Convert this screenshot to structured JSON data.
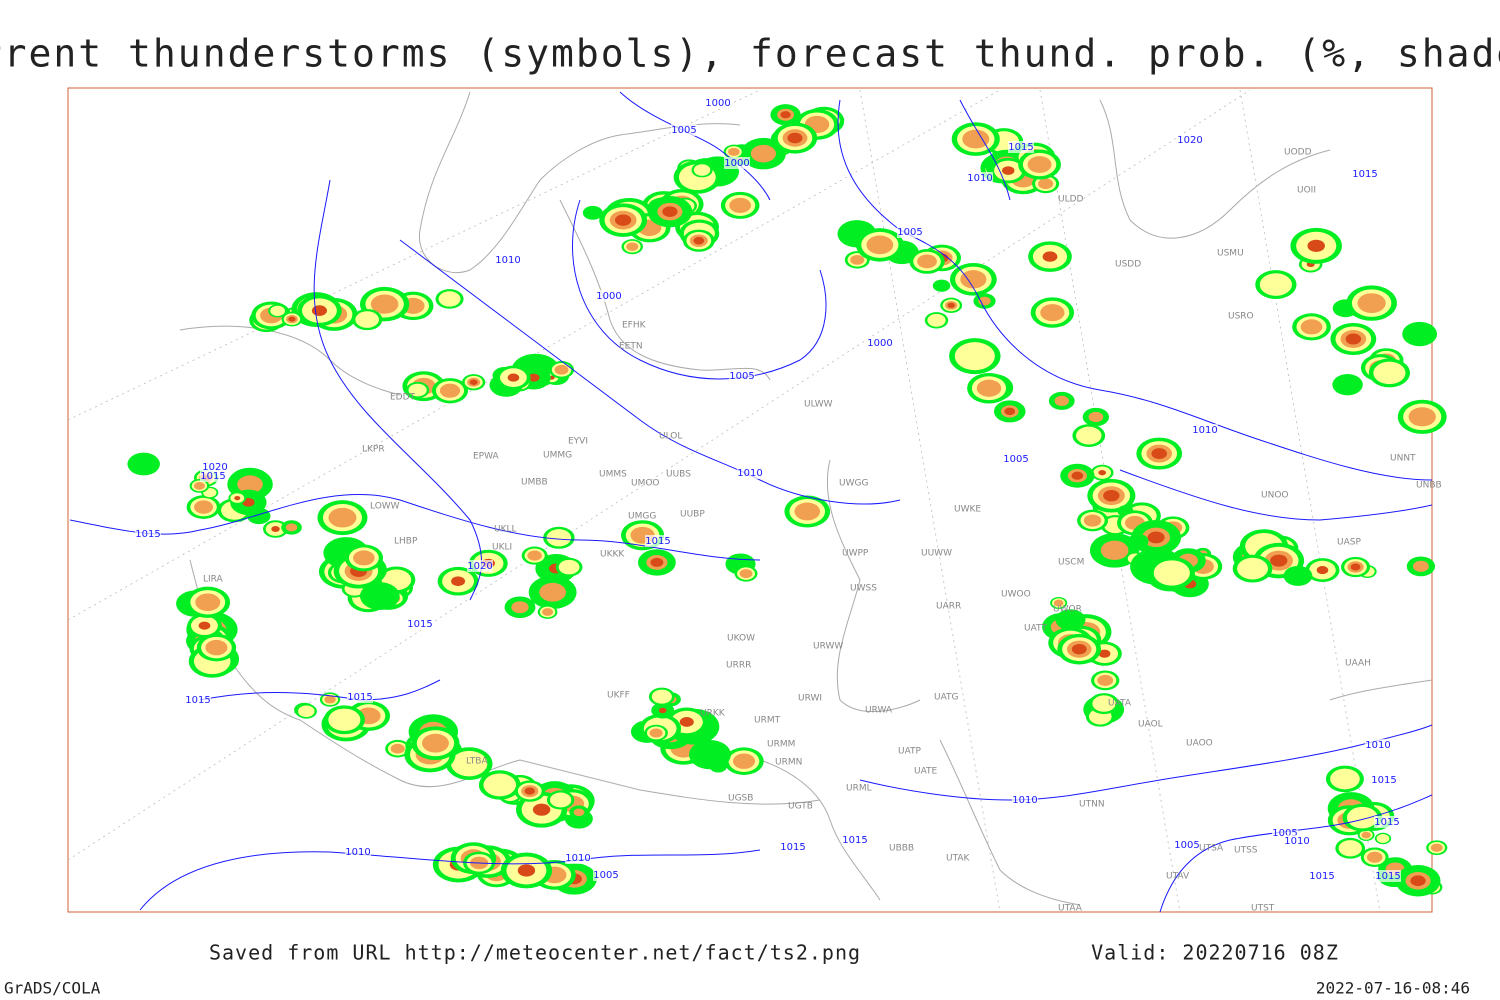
{
  "title": "Current thunderstorms (symbols), forecast thund. prob. (%, shaded)",
  "footer": {
    "saved": "Saved from URL http://meteocenter.net/fact/ts2.png",
    "valid": "Valid: 20220716 08Z"
  },
  "credits": {
    "left": "GrADS/COLA",
    "right": "2022-07-16-08:46"
  },
  "isobar_labels": [
    "1000",
    "1005",
    "1000",
    "1015",
    "1010",
    "1020",
    "1015",
    "1010",
    "1005",
    "1000",
    "1000",
    "1005",
    "1010",
    "1005",
    "1020",
    "1015",
    "1010",
    "1015",
    "1015",
    "1020",
    "1015",
    "1015",
    "1015",
    "1010",
    "1015",
    "1010",
    "1015",
    "1005",
    "1010",
    "1005",
    "1015",
    "1015",
    "1010",
    "1010",
    "1005",
    "1015",
    "1015"
  ],
  "station_labels": [
    "ULDD",
    "UODD",
    "UOII",
    "USMU",
    "USDD",
    "USRO",
    "EFHK",
    "EETN",
    "ULWW",
    "EDDT",
    "ULOL",
    "EYVI",
    "EPWA",
    "UMMG",
    "LKPR",
    "UMMS",
    "UUBS",
    "UMOO",
    "UMBB",
    "UWGG",
    "UNOO",
    "UNBB",
    "UWKE",
    "LOWW",
    "UKLL",
    "UMGG",
    "UUBP",
    "LHBP",
    "UKLI",
    "UUWW",
    "UWPP",
    "UKKK",
    "USCM",
    "UASP",
    "LIRA",
    "UWSS",
    "UARR",
    "UWOO",
    "UWOR",
    "UATT",
    "UKOW",
    "URWW",
    "URRR",
    "UAAH",
    "UKFF",
    "URWI",
    "UATG",
    "UATA",
    "URKK",
    "URMT",
    "URWA",
    "UAOL",
    "URMM",
    "UATP",
    "UAOO",
    "UATE",
    "URMN",
    "LTBA",
    "URML",
    "UTNN",
    "UGSB",
    "UGTB",
    "UBBB",
    "UTAK",
    "UTSS",
    "UTSA",
    "UTAV",
    "UTAA",
    "UTST",
    "UNNT"
  ]
}
